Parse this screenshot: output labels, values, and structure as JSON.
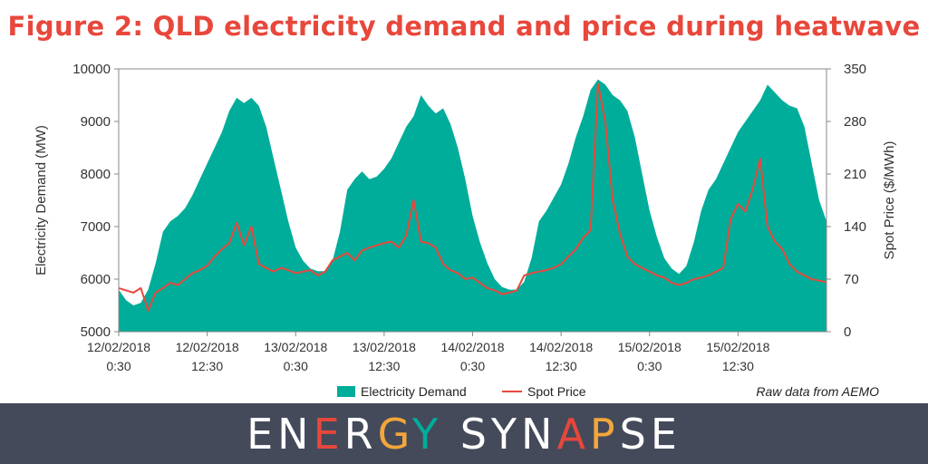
{
  "title": "Figure 2: QLD electricity demand and price during heatwave",
  "source_note": "Raw data from AEMO",
  "brand": "ENERGY SYNAPSE",
  "colors": {
    "title": "#e8473b",
    "demand": "#00ad9a",
    "price": "#e8473b",
    "footer": "#444a5a",
    "brand_accents": [
      "#e8473b",
      "#f4a63a",
      "#00ad9a"
    ]
  },
  "chart_data": {
    "type": "area",
    "ylabel_left": "Electricity Demand (MW)",
    "ylabel_right": "Spot Price ($/MWh)",
    "ylim_left": [
      5000,
      10000
    ],
    "ylim_right": [
      0,
      350
    ],
    "yticks_left": [
      "5000",
      "6000",
      "7000",
      "8000",
      "9000",
      "10000"
    ],
    "yticks_right": [
      "0",
      "70",
      "140",
      "210",
      "280",
      "350"
    ],
    "x_range_hours": [
      0,
      96
    ],
    "xticks": [
      {
        "date": "12/02/2018",
        "time": "0:30"
      },
      {
        "date": "12/02/2018",
        "time": "12:30"
      },
      {
        "date": "13/02/2018",
        "time": "0:30"
      },
      {
        "date": "13/02/2018",
        "time": "12:30"
      },
      {
        "date": "14/02/2018",
        "time": "0:30"
      },
      {
        "date": "14/02/2018",
        "time": "12:30"
      },
      {
        "date": "15/02/2018",
        "time": "0:30"
      },
      {
        "date": "15/02/2018",
        "time": "12:30"
      }
    ],
    "grid": false,
    "legend_position": "bottom",
    "series": [
      {
        "name": "Electricity Demand",
        "axis": "left",
        "type": "area",
        "points": [
          [
            0,
            5800
          ],
          [
            1,
            5600
          ],
          [
            2,
            5500
          ],
          [
            3,
            5550
          ],
          [
            4,
            5800
          ],
          [
            5,
            6300
          ],
          [
            6,
            6900
          ],
          [
            7,
            7100
          ],
          [
            8,
            7200
          ],
          [
            9,
            7350
          ],
          [
            10,
            7600
          ],
          [
            11,
            7900
          ],
          [
            12,
            8200
          ],
          [
            13,
            8500
          ],
          [
            14,
            8800
          ],
          [
            15,
            9200
          ],
          [
            16,
            9450
          ],
          [
            17,
            9350
          ],
          [
            18,
            9450
          ],
          [
            19,
            9300
          ],
          [
            20,
            8900
          ],
          [
            21,
            8300
          ],
          [
            22,
            7700
          ],
          [
            23,
            7100
          ],
          [
            24,
            6600
          ],
          [
            25,
            6350
          ],
          [
            26,
            6200
          ],
          [
            27,
            6150
          ],
          [
            28,
            6150
          ],
          [
            29,
            6350
          ],
          [
            30,
            6900
          ],
          [
            31,
            7700
          ],
          [
            32,
            7900
          ],
          [
            33,
            8050
          ],
          [
            34,
            7900
          ],
          [
            35,
            7950
          ],
          [
            36,
            8100
          ],
          [
            37,
            8300
          ],
          [
            38,
            8600
          ],
          [
            39,
            8900
          ],
          [
            40,
            9100
          ],
          [
            41,
            9500
          ],
          [
            42,
            9300
          ],
          [
            43,
            9150
          ],
          [
            44,
            9250
          ],
          [
            45,
            8950
          ],
          [
            46,
            8500
          ],
          [
            47,
            7900
          ],
          [
            48,
            7200
          ],
          [
            49,
            6700
          ],
          [
            50,
            6300
          ],
          [
            51,
            6000
          ],
          [
            52,
            5850
          ],
          [
            53,
            5800
          ],
          [
            54,
            5800
          ],
          [
            55,
            5950
          ],
          [
            56,
            6400
          ],
          [
            57,
            7100
          ],
          [
            58,
            7300
          ],
          [
            59,
            7550
          ],
          [
            60,
            7800
          ],
          [
            61,
            8200
          ],
          [
            62,
            8700
          ],
          [
            63,
            9100
          ],
          [
            64,
            9600
          ],
          [
            65,
            9800
          ],
          [
            66,
            9700
          ],
          [
            67,
            9500
          ],
          [
            68,
            9400
          ],
          [
            69,
            9200
          ],
          [
            70,
            8700
          ],
          [
            71,
            8000
          ],
          [
            72,
            7300
          ],
          [
            73,
            6800
          ],
          [
            74,
            6400
          ],
          [
            75,
            6200
          ],
          [
            76,
            6100
          ],
          [
            77,
            6250
          ],
          [
            78,
            6700
          ],
          [
            79,
            7300
          ],
          [
            80,
            7700
          ],
          [
            81,
            7900
          ],
          [
            82,
            8200
          ],
          [
            83,
            8500
          ],
          [
            84,
            8800
          ],
          [
            85,
            9000
          ],
          [
            86,
            9200
          ],
          [
            87,
            9400
          ],
          [
            88,
            9700
          ],
          [
            89,
            9550
          ],
          [
            90,
            9400
          ],
          [
            91,
            9300
          ],
          [
            92,
            9250
          ],
          [
            93,
            8900
          ],
          [
            94,
            8200
          ],
          [
            95,
            7500
          ],
          [
            96,
            7100
          ]
        ]
      },
      {
        "name": "Spot Price",
        "axis": "right",
        "type": "line",
        "points": [
          [
            0,
            58
          ],
          [
            1,
            55
          ],
          [
            2,
            52
          ],
          [
            3,
            58
          ],
          [
            4,
            28
          ],
          [
            5,
            52
          ],
          [
            6,
            58
          ],
          [
            7,
            65
          ],
          [
            8,
            62
          ],
          [
            9,
            70
          ],
          [
            10,
            78
          ],
          [
            11,
            82
          ],
          [
            12,
            88
          ],
          [
            13,
            100
          ],
          [
            14,
            110
          ],
          [
            15,
            118
          ],
          [
            16,
            145
          ],
          [
            17,
            115
          ],
          [
            18,
            140
          ],
          [
            19,
            90
          ],
          [
            20,
            85
          ],
          [
            21,
            80
          ],
          [
            22,
            85
          ],
          [
            23,
            82
          ],
          [
            24,
            78
          ],
          [
            25,
            80
          ],
          [
            26,
            82
          ],
          [
            27,
            75
          ],
          [
            28,
            80
          ],
          [
            29,
            95
          ],
          [
            30,
            100
          ],
          [
            31,
            105
          ],
          [
            32,
            95
          ],
          [
            33,
            108
          ],
          [
            34,
            112
          ],
          [
            35,
            115
          ],
          [
            36,
            118
          ],
          [
            37,
            120
          ],
          [
            38,
            112
          ],
          [
            39,
            128
          ],
          [
            40,
            175
          ],
          [
            41,
            120
          ],
          [
            42,
            118
          ],
          [
            43,
            112
          ],
          [
            44,
            90
          ],
          [
            45,
            82
          ],
          [
            46,
            78
          ],
          [
            47,
            70
          ],
          [
            48,
            72
          ],
          [
            49,
            65
          ],
          [
            50,
            58
          ],
          [
            51,
            55
          ],
          [
            52,
            50
          ],
          [
            53,
            52
          ],
          [
            54,
            55
          ],
          [
            55,
            75
          ],
          [
            56,
            78
          ],
          [
            57,
            80
          ],
          [
            58,
            82
          ],
          [
            59,
            85
          ],
          [
            60,
            90
          ],
          [
            61,
            100
          ],
          [
            62,
            110
          ],
          [
            63,
            125
          ],
          [
            64,
            135
          ],
          [
            65,
            330
          ],
          [
            66,
            280
          ],
          [
            67,
            175
          ],
          [
            68,
            130
          ],
          [
            69,
            100
          ],
          [
            70,
            90
          ],
          [
            71,
            85
          ],
          [
            72,
            80
          ],
          [
            73,
            75
          ],
          [
            74,
            72
          ],
          [
            75,
            65
          ],
          [
            76,
            62
          ],
          [
            77,
            65
          ],
          [
            78,
            70
          ],
          [
            79,
            72
          ],
          [
            80,
            75
          ],
          [
            81,
            80
          ],
          [
            82,
            85
          ],
          [
            83,
            150
          ],
          [
            84,
            170
          ],
          [
            85,
            160
          ],
          [
            86,
            190
          ],
          [
            87,
            230
          ],
          [
            88,
            140
          ],
          [
            89,
            120
          ],
          [
            90,
            110
          ],
          [
            91,
            90
          ],
          [
            92,
            80
          ],
          [
            93,
            75
          ],
          [
            94,
            70
          ],
          [
            95,
            68
          ],
          [
            96,
            66
          ]
        ]
      }
    ]
  }
}
